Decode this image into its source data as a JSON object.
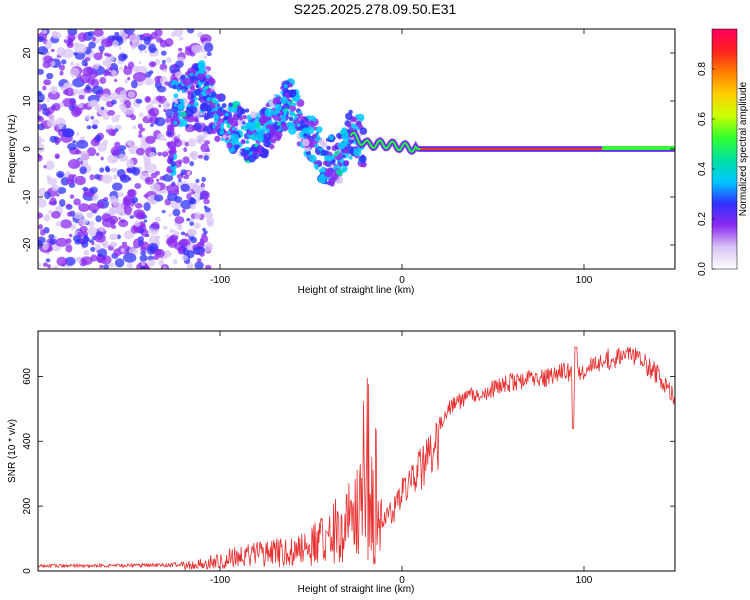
{
  "page_title": "S225.2025.278.09.50.E31",
  "chart_data": [
    {
      "type": "heatmap",
      "title": "S225.2025.278.09.50.E31",
      "xlabel": "Height of straight line (km)",
      "ylabel": "Frequency (Hz)",
      "xlim": [
        -200,
        150
      ],
      "ylim": [
        -25,
        25
      ],
      "xticks": [
        -100,
        0,
        100
      ],
      "yticks": [
        -20,
        -10,
        0,
        10,
        20
      ],
      "ridge": {
        "x": [
          -125,
          -110,
          -100,
          -90,
          -80,
          -70,
          -62,
          -55,
          -48,
          -42,
          -35,
          -28,
          -20,
          -10,
          0,
          10,
          50,
          100,
          150
        ],
        "y": [
          9,
          13,
          6,
          4,
          2,
          6,
          10,
          5,
          1,
          -3,
          -2,
          3,
          1,
          1,
          0.5,
          0,
          0,
          0,
          0
        ]
      },
      "colorbar": {
        "label": "Normalized spectral amplitude",
        "ticks": [
          0.0,
          0.2,
          0.4,
          0.6,
          0.8
        ],
        "colors": [
          "#ffffff",
          "#d9c4f5",
          "#8b2bf0",
          "#3030ff",
          "#00c8ff",
          "#00e0a0",
          "#30ff30",
          "#c8ff00",
          "#ffd000",
          "#ff8000",
          "#ff2020",
          "#ff0060"
        ]
      }
    },
    {
      "type": "line",
      "xlabel": "Height of straight line (km)",
      "ylabel": "SNR (10 * v/v)",
      "xlim": [
        -200,
        150
      ],
      "ylim": [
        0,
        740
      ],
      "xticks": [
        -100,
        0,
        100
      ],
      "yticks": [
        0,
        200,
        400,
        600
      ],
      "line_color": "#e83030",
      "series": [
        {
          "name": "SNR",
          "x": [
            -200,
            -180,
            -160,
            -140,
            -130,
            -120,
            -110,
            -100,
            -90,
            -80,
            -70,
            -60,
            -50,
            -40,
            -35,
            -30,
            -25,
            -20,
            -17,
            -15,
            -12,
            -10,
            -5,
            0,
            5,
            10,
            15,
            20,
            25,
            30,
            40,
            50,
            60,
            70,
            80,
            90,
            95,
            100,
            110,
            120,
            125,
            130,
            140,
            150
          ],
          "values": [
            20,
            22,
            22,
            24,
            25,
            28,
            40,
            60,
            80,
            90,
            100,
            110,
            140,
            190,
            240,
            280,
            320,
            360,
            390,
            300,
            240,
            200,
            220,
            290,
            330,
            380,
            420,
            470,
            520,
            550,
            570,
            590,
            610,
            620,
            630,
            650,
            640,
            660,
            680,
            700,
            705,
            690,
            640,
            560
          ]
        }
      ]
    }
  ]
}
